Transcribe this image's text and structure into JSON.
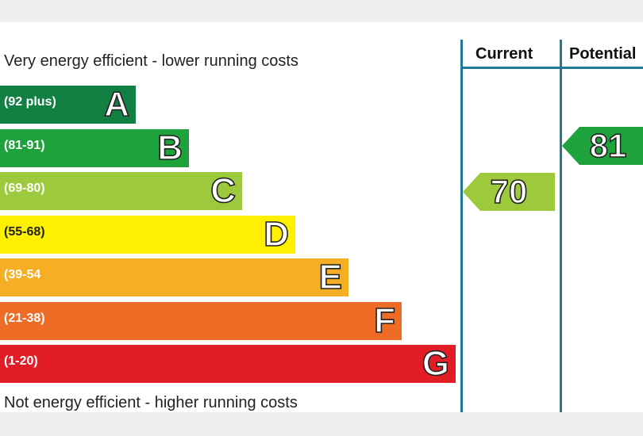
{
  "chart_data": {
    "type": "energy-rating",
    "top_caption": "Very energy efficient - lower running costs",
    "bottom_caption": "Not energy efficient - higher running costs",
    "columns": [
      "Current",
      "Potential"
    ],
    "bands": [
      {
        "letter": "A",
        "range": "(92 plus)",
        "color": "#138043"
      },
      {
        "letter": "B",
        "range": "(81-91)",
        "color": "#1ea23c"
      },
      {
        "letter": "C",
        "range": "(69-80)",
        "color": "#9dc93c"
      },
      {
        "letter": "D",
        "range": "(55-68)",
        "color": "#ffef00"
      },
      {
        "letter": "E",
        "range": "(39-54",
        "color": "#f6ae25"
      },
      {
        "letter": "F",
        "range": "(21-38)",
        "color": "#ee6c25"
      },
      {
        "letter": "G",
        "range": "(1-20)",
        "color": "#e31d26"
      }
    ],
    "current": {
      "value": "70",
      "band": "C",
      "color": "#9dc93c"
    },
    "potential": {
      "value": "81",
      "band": "B",
      "color": "#1ea23c"
    }
  }
}
